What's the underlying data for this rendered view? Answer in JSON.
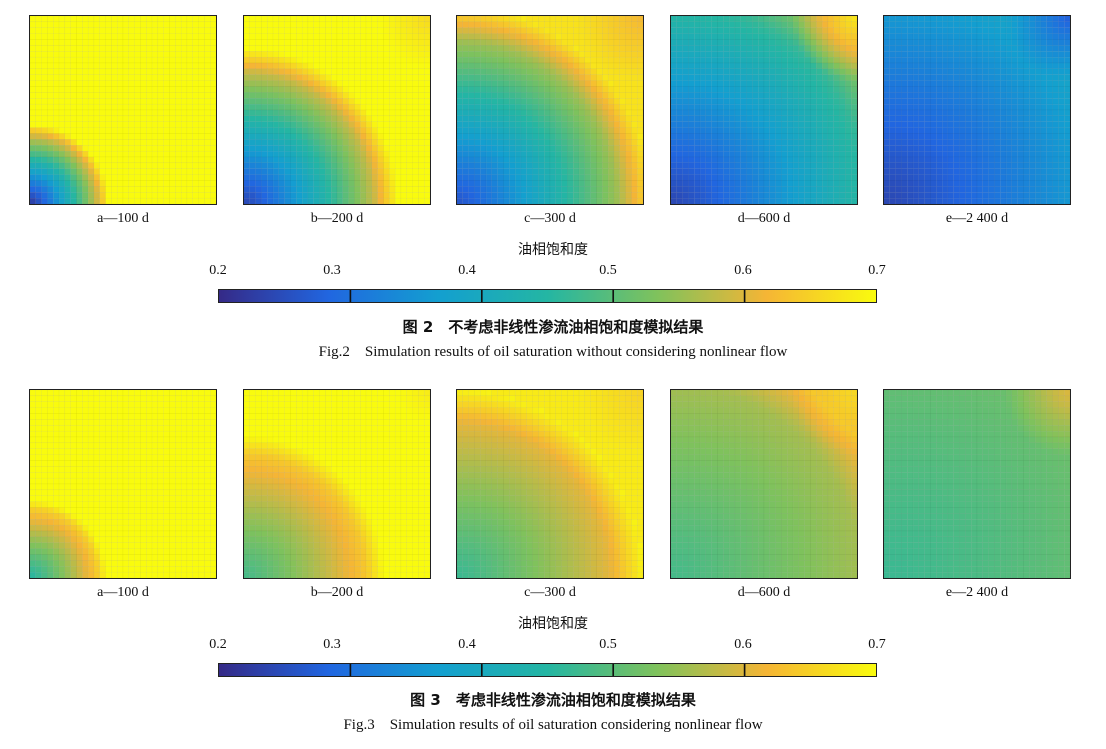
{
  "colorbar": {
    "title": "油相饱和度",
    "min": 0.2,
    "max": 0.7,
    "ticks": [
      "0.2",
      "0.3",
      "0.4",
      "0.5",
      "0.6",
      "0.7"
    ],
    "tick_values": [
      0.2,
      0.3,
      0.4,
      0.5,
      0.6,
      0.7
    ],
    "colors": [
      "#352a87",
      "#2166e0",
      "#139fd0",
      "#24b6a3",
      "#7fc25c",
      "#f5b535",
      "#f9fb0e"
    ]
  },
  "figures": [
    {
      "caption_zh": "图 2　不考虑非线性渗流油相饱和度模拟结果",
      "caption_en": "Fig.2　Simulation results of oil saturation without considering nonlinear flow",
      "panels": [
        {
          "label": "a—100 d",
          "front": 0.45,
          "min": 0.22,
          "far": 0.7,
          "corner": 0.7
        },
        {
          "label": "b—200 d",
          "front": 0.85,
          "min": 0.24,
          "far": 0.67,
          "corner": 0.66
        },
        {
          "label": "c—300 d",
          "front": 1.05,
          "min": 0.26,
          "far": 0.63,
          "corner": 0.62
        },
        {
          "label": "d—600 d",
          "front": 1.3,
          "min": 0.24,
          "far": 0.52,
          "corner": 0.68
        },
        {
          "label": "e—2 400 d",
          "front": 1.6,
          "min": 0.24,
          "far": 0.44,
          "corner": 0.27
        }
      ]
    },
    {
      "caption_zh": "图 3　考虑非线性渗流油相饱和度模拟结果",
      "caption_en": "Fig.3　Simulation results of oil saturation considering nonlinear flow",
      "panels": [
        {
          "label": "a—100 d",
          "front": 0.45,
          "min": 0.45,
          "far": 0.7,
          "corner": 0.7
        },
        {
          "label": "b—200 d",
          "front": 0.8,
          "min": 0.48,
          "far": 0.68,
          "corner": 0.68
        },
        {
          "label": "c—300 d",
          "front": 1.0,
          "min": 0.47,
          "far": 0.64,
          "corner": 0.65
        },
        {
          "label": "d—600 d",
          "front": 1.25,
          "min": 0.48,
          "far": 0.58,
          "corner": 0.66
        },
        {
          "label": "e—2 400 d",
          "front": 1.55,
          "min": 0.47,
          "far": 0.53,
          "corner": 0.6
        }
      ]
    }
  ]
}
